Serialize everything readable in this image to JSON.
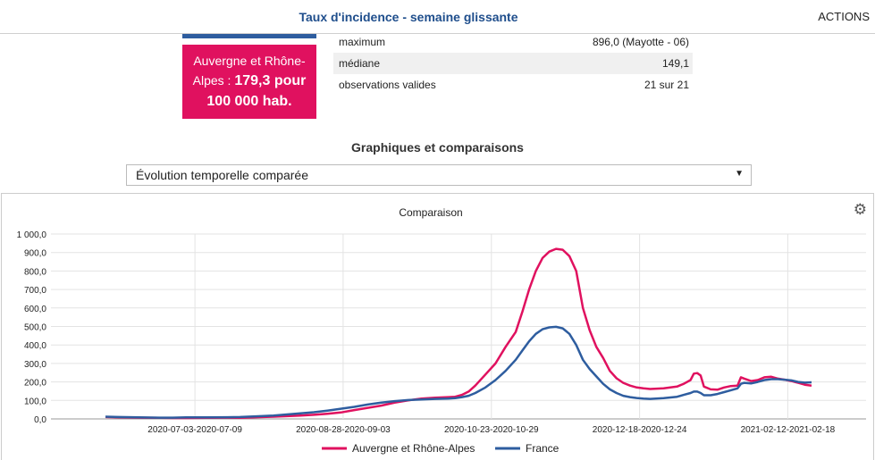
{
  "header": {
    "title": "Taux d'incidence - semaine glissante",
    "actions_label": "ACTIONS"
  },
  "region_card": {
    "prefix": "Auvergne et Rhône-Alpes :",
    "value": "179,3 pour 100 000 hab."
  },
  "stats": [
    {
      "label": "maximum",
      "value": "896,0 (Mayotte - 06)"
    },
    {
      "label": "médiane",
      "value": "149,1"
    },
    {
      "label": "observations valides",
      "value": "21 sur 21"
    }
  ],
  "section_title": "Graphiques et comparaisons",
  "select": {
    "selected": "Évolution temporelle comparée"
  },
  "colors": {
    "accent": "#e0115f",
    "france": "#2e5d9f",
    "header_text": "#1f4e8c"
  },
  "icons": {
    "settings": "gear-icon",
    "dropdown": "caret-down-icon"
  },
  "chart_data": {
    "type": "line",
    "title": "Comparaison",
    "xlabel": "",
    "ylabel": "",
    "ylim": [
      0,
      1000
    ],
    "yticks": [
      "0,0",
      "100,0",
      "200,0",
      "300,0",
      "400,0",
      "500,0",
      "600,0",
      "700,0",
      "800,0",
      "900,0",
      "1 000,0"
    ],
    "x_tick_labels": [
      "2020-07-03-2020-07-09",
      "2020-08-28-2020-09-03",
      "2020-10-23-2020-10-29",
      "2020-12-18-2020-12-24",
      "2021-02-12-2021-02-18"
    ],
    "x_tick_positions": [
      0.1891,
      0.3837,
      0.5784,
      0.773,
      0.9676
    ],
    "grid": true,
    "legend_position": "bottom",
    "series": [
      {
        "name": "Auvergne et Rhône-Alpes",
        "color": "#e0115f",
        "points": [
          [
            0,
            10
          ],
          [
            0.02,
            8
          ],
          [
            0.05,
            7
          ],
          [
            0.08,
            6
          ],
          [
            0.1,
            5
          ],
          [
            0.12,
            5
          ],
          [
            0.15,
            6
          ],
          [
            0.18,
            7
          ],
          [
            0.2,
            6
          ],
          [
            0.22,
            8
          ],
          [
            0.25,
            12
          ],
          [
            0.27,
            15
          ],
          [
            0.29,
            18
          ],
          [
            0.31,
            22
          ],
          [
            0.33,
            28
          ],
          [
            0.35,
            35
          ],
          [
            0.37,
            48
          ],
          [
            0.39,
            60
          ],
          [
            0.41,
            72
          ],
          [
            0.43,
            88
          ],
          [
            0.45,
            100
          ],
          [
            0.47,
            110
          ],
          [
            0.49,
            115
          ],
          [
            0.51,
            118
          ],
          [
            0.52,
            120
          ],
          [
            0.53,
            130
          ],
          [
            0.54,
            148
          ],
          [
            0.55,
            180
          ],
          [
            0.565,
            240
          ],
          [
            0.58,
            300
          ],
          [
            0.595,
            390
          ],
          [
            0.61,
            470
          ],
          [
            0.62,
            580
          ],
          [
            0.63,
            700
          ],
          [
            0.64,
            800
          ],
          [
            0.65,
            870
          ],
          [
            0.66,
            905
          ],
          [
            0.67,
            920
          ],
          [
            0.68,
            915
          ],
          [
            0.69,
            880
          ],
          [
            0.7,
            800
          ],
          [
            0.71,
            600
          ],
          [
            0.72,
            480
          ],
          [
            0.73,
            390
          ],
          [
            0.74,
            330
          ],
          [
            0.75,
            260
          ],
          [
            0.76,
            220
          ],
          [
            0.77,
            195
          ],
          [
            0.78,
            180
          ],
          [
            0.79,
            170
          ],
          [
            0.8,
            165
          ],
          [
            0.81,
            162
          ],
          [
            0.83,
            165
          ],
          [
            0.85,
            175
          ],
          [
            0.86,
            190
          ],
          [
            0.87,
            210
          ],
          [
            0.875,
            245
          ],
          [
            0.88,
            248
          ],
          [
            0.885,
            235
          ],
          [
            0.89,
            175
          ],
          [
            0.9,
            160
          ],
          [
            0.91,
            158
          ],
          [
            0.92,
            170
          ],
          [
            0.93,
            178
          ],
          [
            0.94,
            180
          ],
          [
            0.945,
            225
          ],
          [
            0.95,
            218
          ],
          [
            0.96,
            205
          ],
          [
            0.97,
            210
          ],
          [
            0.98,
            225
          ],
          [
            0.99,
            228
          ],
          [
            1.0,
            218
          ],
          [
            1.01,
            212
          ],
          [
            1.02,
            205
          ],
          [
            1.03,
            195
          ],
          [
            1.04,
            185
          ],
          [
            1.05,
            180
          ]
        ]
      },
      {
        "name": "France",
        "color": "#2e5d9f",
        "points": [
          [
            0,
            12
          ],
          [
            0.02,
            10
          ],
          [
            0.05,
            8
          ],
          [
            0.08,
            7
          ],
          [
            0.1,
            7
          ],
          [
            0.12,
            8
          ],
          [
            0.15,
            8
          ],
          [
            0.18,
            9
          ],
          [
            0.2,
            10
          ],
          [
            0.22,
            13
          ],
          [
            0.25,
            18
          ],
          [
            0.27,
            24
          ],
          [
            0.29,
            30
          ],
          [
            0.31,
            36
          ],
          [
            0.33,
            45
          ],
          [
            0.35,
            55
          ],
          [
            0.37,
            65
          ],
          [
            0.39,
            78
          ],
          [
            0.41,
            88
          ],
          [
            0.43,
            96
          ],
          [
            0.45,
            102
          ],
          [
            0.47,
            105
          ],
          [
            0.49,
            108
          ],
          [
            0.51,
            110
          ],
          [
            0.52,
            112
          ],
          [
            0.53,
            118
          ],
          [
            0.54,
            125
          ],
          [
            0.55,
            140
          ],
          [
            0.565,
            170
          ],
          [
            0.58,
            210
          ],
          [
            0.595,
            260
          ],
          [
            0.61,
            320
          ],
          [
            0.62,
            370
          ],
          [
            0.63,
            420
          ],
          [
            0.64,
            460
          ],
          [
            0.65,
            485
          ],
          [
            0.66,
            495
          ],
          [
            0.67,
            498
          ],
          [
            0.68,
            490
          ],
          [
            0.69,
            460
          ],
          [
            0.7,
            400
          ],
          [
            0.71,
            320
          ],
          [
            0.72,
            270
          ],
          [
            0.73,
            230
          ],
          [
            0.74,
            190
          ],
          [
            0.75,
            160
          ],
          [
            0.76,
            140
          ],
          [
            0.77,
            125
          ],
          [
            0.78,
            118
          ],
          [
            0.79,
            113
          ],
          [
            0.8,
            110
          ],
          [
            0.81,
            108
          ],
          [
            0.83,
            112
          ],
          [
            0.85,
            120
          ],
          [
            0.86,
            130
          ],
          [
            0.87,
            140
          ],
          [
            0.875,
            148
          ],
          [
            0.88,
            148
          ],
          [
            0.885,
            140
          ],
          [
            0.89,
            128
          ],
          [
            0.9,
            128
          ],
          [
            0.91,
            135
          ],
          [
            0.92,
            145
          ],
          [
            0.93,
            155
          ],
          [
            0.94,
            165
          ],
          [
            0.945,
            190
          ],
          [
            0.95,
            195
          ],
          [
            0.96,
            192
          ],
          [
            0.97,
            200
          ],
          [
            0.98,
            210
          ],
          [
            0.99,
            215
          ],
          [
            1.0,
            215
          ],
          [
            1.01,
            212
          ],
          [
            1.02,
            208
          ],
          [
            1.03,
            200
          ],
          [
            1.04,
            196
          ],
          [
            1.05,
            198
          ]
        ]
      }
    ]
  }
}
